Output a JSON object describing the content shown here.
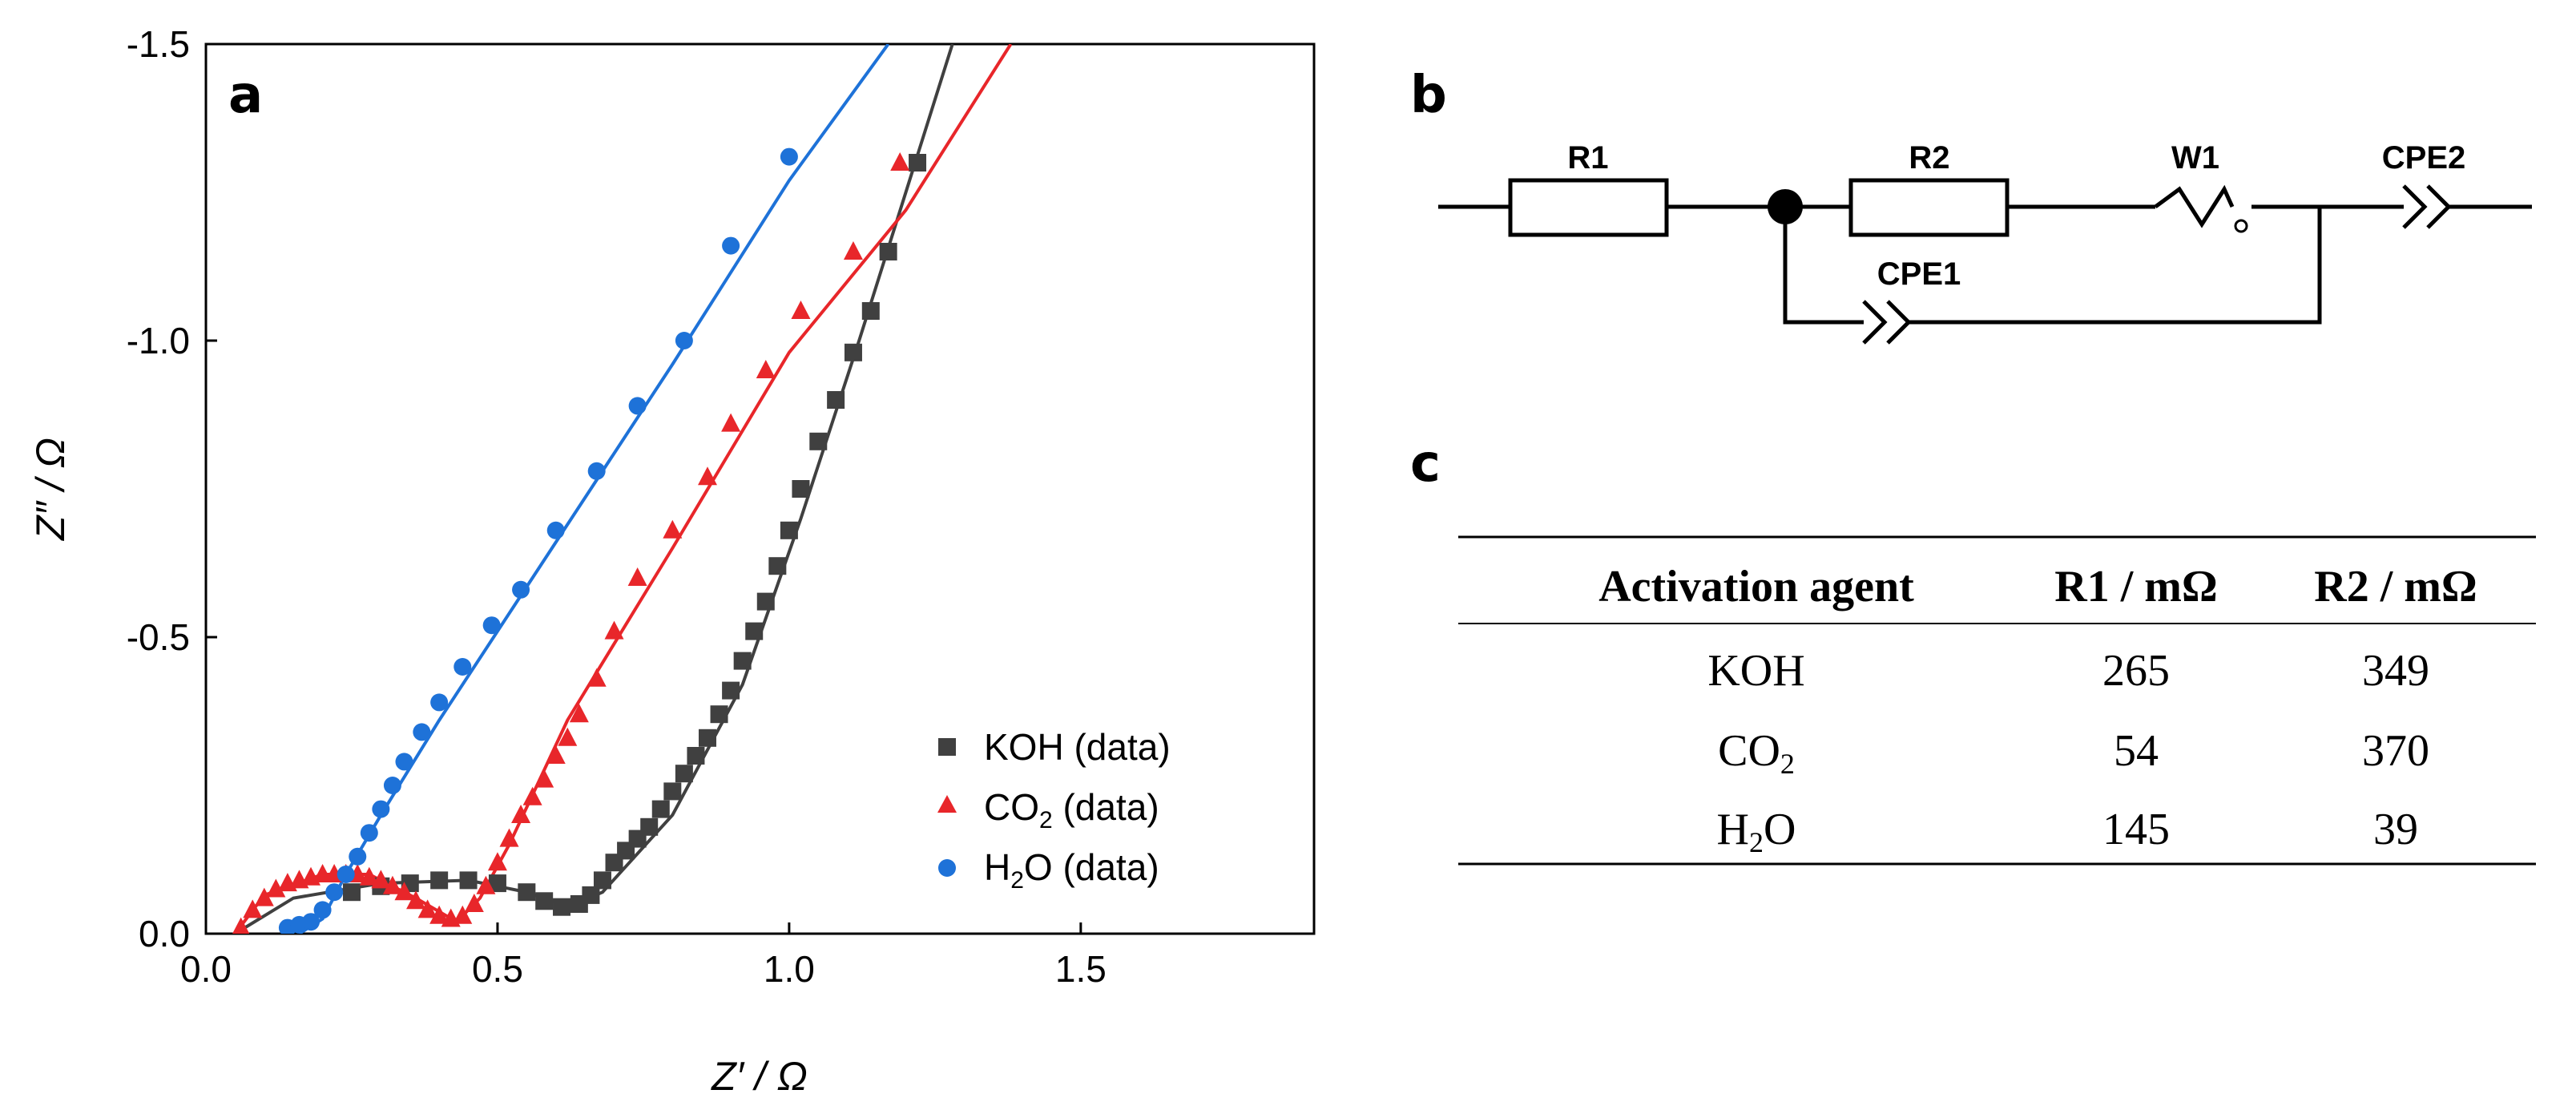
{
  "chart_data": [
    {
      "type": "scatter",
      "panel_label": "a",
      "xlabel": "Z′ / Ω",
      "ylabel": "Z″ / Ω",
      "xlim": [
        0.0,
        1.9
      ],
      "ylim": [
        0.0,
        -1.5
      ],
      "x_ticks": [
        "0.0",
        "0.5",
        "1.0",
        "1.5"
      ],
      "x_tick_values": [
        0.0,
        0.5,
        1.0,
        1.5
      ],
      "y_ticks": [
        "0.0",
        "-0.5",
        "-1.0",
        "-1.5"
      ],
      "y_tick_values": [
        0.0,
        -0.5,
        -1.0,
        -1.5
      ],
      "legend_position": "bottom-right",
      "series": [
        {
          "name": "KOH (data)",
          "label_main": "KOH",
          "label_sub": "",
          "label_rest": " (data)",
          "marker": "square",
          "color": "#404040",
          "points": [
            [
              0.25,
              -0.07
            ],
            [
              0.3,
              -0.08
            ],
            [
              0.35,
              -0.085
            ],
            [
              0.4,
              -0.09
            ],
            [
              0.45,
              -0.09
            ],
            [
              0.5,
              -0.085
            ],
            [
              0.55,
              -0.07
            ],
            [
              0.58,
              -0.055
            ],
            [
              0.61,
              -0.045
            ],
            [
              0.64,
              -0.05
            ],
            [
              0.66,
              -0.065
            ],
            [
              0.68,
              -0.09
            ],
            [
              0.7,
              -0.12
            ],
            [
              0.72,
              -0.14
            ],
            [
              0.74,
              -0.16
            ],
            [
              0.76,
              -0.18
            ],
            [
              0.78,
              -0.21
            ],
            [
              0.8,
              -0.24
            ],
            [
              0.82,
              -0.27
            ],
            [
              0.84,
              -0.3
            ],
            [
              0.86,
              -0.33
            ],
            [
              0.88,
              -0.37
            ],
            [
              0.9,
              -0.41
            ],
            [
              0.92,
              -0.46
            ],
            [
              0.94,
              -0.51
            ],
            [
              0.96,
              -0.56
            ],
            [
              0.98,
              -0.62
            ],
            [
              1.0,
              -0.68
            ],
            [
              1.02,
              -0.75
            ],
            [
              1.05,
              -0.83
            ],
            [
              1.08,
              -0.9
            ],
            [
              1.11,
              -0.98
            ],
            [
              1.14,
              -1.05
            ],
            [
              1.17,
              -1.15
            ],
            [
              1.22,
              -1.3
            ]
          ],
          "fit": [
            [
              0.05,
              0.0
            ],
            [
              0.15,
              -0.06
            ],
            [
              0.3,
              -0.085
            ],
            [
              0.45,
              -0.09
            ],
            [
              0.55,
              -0.07
            ],
            [
              0.62,
              -0.045
            ],
            [
              0.68,
              -0.07
            ],
            [
              0.8,
              -0.2
            ],
            [
              0.92,
              -0.42
            ],
            [
              1.02,
              -0.7
            ],
            [
              1.12,
              -1.0
            ],
            [
              1.2,
              -1.25
            ],
            [
              1.28,
              -1.5
            ]
          ]
        },
        {
          "name": "CO2 (data)",
          "label_main": "CO",
          "label_sub": "2",
          "label_rest": " (data)",
          "marker": "triangle",
          "color": "#e8262a",
          "points": [
            [
              0.06,
              -0.01
            ],
            [
              0.08,
              -0.04
            ],
            [
              0.1,
              -0.06
            ],
            [
              0.12,
              -0.075
            ],
            [
              0.14,
              -0.085
            ],
            [
              0.16,
              -0.09
            ],
            [
              0.18,
              -0.095
            ],
            [
              0.2,
              -0.1
            ],
            [
              0.22,
              -0.1
            ],
            [
              0.24,
              -0.1
            ],
            [
              0.26,
              -0.1
            ],
            [
              0.28,
              -0.095
            ],
            [
              0.3,
              -0.09
            ],
            [
              0.32,
              -0.08
            ],
            [
              0.34,
              -0.07
            ],
            [
              0.36,
              -0.055
            ],
            [
              0.38,
              -0.04
            ],
            [
              0.4,
              -0.03
            ],
            [
              0.42,
              -0.025
            ],
            [
              0.44,
              -0.03
            ],
            [
              0.46,
              -0.05
            ],
            [
              0.48,
              -0.08
            ],
            [
              0.5,
              -0.12
            ],
            [
              0.52,
              -0.16
            ],
            [
              0.54,
              -0.2
            ],
            [
              0.56,
              -0.23
            ],
            [
              0.58,
              -0.26
            ],
            [
              0.6,
              -0.3
            ],
            [
              0.62,
              -0.33
            ],
            [
              0.64,
              -0.37
            ],
            [
              0.67,
              -0.43
            ],
            [
              0.7,
              -0.51
            ],
            [
              0.74,
              -0.6
            ],
            [
              0.8,
              -0.68
            ],
            [
              0.86,
              -0.77
            ],
            [
              0.9,
              -0.86
            ],
            [
              0.96,
              -0.95
            ],
            [
              1.02,
              -1.05
            ],
            [
              1.11,
              -1.15
            ],
            [
              1.19,
              -1.3
            ]
          ],
          "fit": [
            [
              0.05,
              0.0
            ],
            [
              0.1,
              -0.065
            ],
            [
              0.2,
              -0.1
            ],
            [
              0.28,
              -0.1
            ],
            [
              0.36,
              -0.06
            ],
            [
              0.43,
              -0.02
            ],
            [
              0.47,
              -0.06
            ],
            [
              0.52,
              -0.15
            ],
            [
              0.62,
              -0.36
            ],
            [
              0.8,
              -0.65
            ],
            [
              1.0,
              -0.98
            ],
            [
              1.2,
              -1.22
            ],
            [
              1.38,
              -1.5
            ]
          ]
        },
        {
          "name": "H2O (data)",
          "label_main": "H",
          "label_sub": "2",
          "label_rest": "O (data)",
          "marker": "circle",
          "color": "#1e72d8",
          "points": [
            [
              0.14,
              -0.01
            ],
            [
              0.16,
              -0.015
            ],
            [
              0.18,
              -0.02
            ],
            [
              0.2,
              -0.04
            ],
            [
              0.22,
              -0.07
            ],
            [
              0.24,
              -0.1
            ],
            [
              0.26,
              -0.13
            ],
            [
              0.28,
              -0.17
            ],
            [
              0.3,
              -0.21
            ],
            [
              0.32,
              -0.25
            ],
            [
              0.34,
              -0.29
            ],
            [
              0.37,
              -0.34
            ],
            [
              0.4,
              -0.39
            ],
            [
              0.44,
              -0.45
            ],
            [
              0.49,
              -0.52
            ],
            [
              0.54,
              -0.58
            ],
            [
              0.6,
              -0.68
            ],
            [
              0.67,
              -0.78
            ],
            [
              0.74,
              -0.89
            ],
            [
              0.82,
              -1.0
            ],
            [
              0.9,
              -1.16
            ],
            [
              1.0,
              -1.31
            ]
          ],
          "fit": [
            [
              0.16,
              0.0
            ],
            [
              0.2,
              -0.025
            ],
            [
              0.24,
              -0.1
            ],
            [
              0.3,
              -0.2
            ],
            [
              0.4,
              -0.36
            ],
            [
              0.6,
              -0.66
            ],
            [
              0.8,
              -0.96
            ],
            [
              1.0,
              -1.27
            ],
            [
              1.17,
              -1.5
            ]
          ]
        }
      ]
    },
    {
      "type": "table",
      "panel_label": "c",
      "columns": [
        "Activation agent",
        "R1 / mΩ",
        "R2 / mΩ"
      ],
      "rows": [
        {
          "agent_main": "KOH",
          "agent_sub": "",
          "agent_rest": "",
          "r1": "265",
          "r2": "349"
        },
        {
          "agent_main": "CO",
          "agent_sub": "2",
          "agent_rest": "",
          "r1": "54",
          "r2": "370"
        },
        {
          "agent_main": "H",
          "agent_sub": "2",
          "agent_rest": "O",
          "r1": "145",
          "r2": "39"
        }
      ]
    }
  ],
  "circuit": {
    "panel_label": "b",
    "labels": {
      "r1": "R1",
      "r2": "R2",
      "w1": "W1",
      "cpe1": "CPE1",
      "cpe2": "CPE2"
    }
  }
}
